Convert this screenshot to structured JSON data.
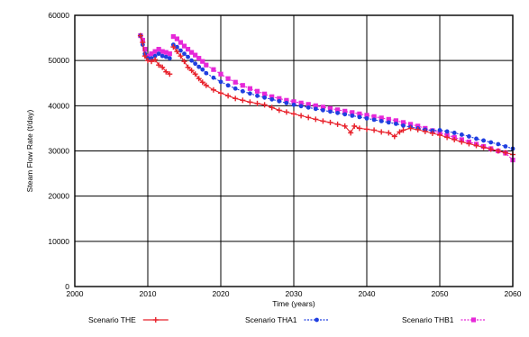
{
  "chart_data": {
    "type": "line",
    "title": "",
    "xlabel": "Time (years)",
    "ylabel": "Steam Flow Rate (t/day)",
    "xlim": [
      2000,
      2060
    ],
    "ylim": [
      0,
      60000
    ],
    "x_ticks": [
      2000,
      2010,
      2020,
      2030,
      2040,
      2050,
      2060
    ],
    "y_ticks": [
      0,
      10000,
      20000,
      30000,
      40000,
      50000,
      60000
    ],
    "grid": true,
    "legend_position": "bottom",
    "series": [
      {
        "name": "Scenario THE",
        "color": "#e8212b",
        "marker": "plus",
        "segments": [
          [
            [
              2009.0,
              55500
            ],
            [
              2009.3,
              54000
            ],
            [
              2009.6,
              51000
            ],
            [
              2010.0,
              50000
            ],
            [
              2010.5,
              49800
            ],
            [
              2011.0,
              50200
            ],
            [
              2011.5,
              49000
            ],
            [
              2012.0,
              48500
            ],
            [
              2012.5,
              47500
            ],
            [
              2013.0,
              47000
            ]
          ],
          [
            [
              2013.5,
              53000
            ],
            [
              2014.0,
              52000
            ],
            [
              2014.5,
              51000
            ],
            [
              2015.0,
              49800
            ],
            [
              2015.5,
              48500
            ],
            [
              2016.0,
              47800
            ],
            [
              2016.5,
              47000
            ],
            [
              2017.0,
              46000
            ],
            [
              2017.5,
              45200
            ],
            [
              2018.0,
              44500
            ],
            [
              2019.0,
              43500
            ],
            [
              2020.0,
              42800
            ],
            [
              2021.0,
              42200
            ],
            [
              2022.0,
              41600
            ],
            [
              2023.0,
              41200
            ],
            [
              2024.0,
              40800
            ],
            [
              2025.0,
              40500
            ],
            [
              2026.0,
              40200
            ],
            [
              2027.0,
              39600
            ],
            [
              2028.0,
              39000
            ],
            [
              2029.0,
              38600
            ],
            [
              2030.0,
              38200
            ],
            [
              2031.0,
              37800
            ],
            [
              2032.0,
              37400
            ],
            [
              2033.0,
              37000
            ],
            [
              2034.0,
              36600
            ],
            [
              2035.0,
              36300
            ],
            [
              2036.0,
              35900
            ],
            [
              2037.0,
              35500
            ],
            [
              2037.8,
              34000
            ],
            [
              2038.3,
              35500
            ],
            [
              2039.0,
              35000
            ],
            [
              2040.0,
              34800
            ],
            [
              2041.0,
              34600
            ],
            [
              2042.0,
              34200
            ],
            [
              2043.0,
              34000
            ],
            [
              2043.8,
              33200
            ],
            [
              2044.5,
              34200
            ],
            [
              2045.0,
              34600
            ],
            [
              2046.0,
              35000
            ],
            [
              2047.0,
              34700
            ],
            [
              2048.0,
              34300
            ],
            [
              2049.0,
              33900
            ],
            [
              2050.0,
              33500
            ],
            [
              2051.0,
              33000
            ],
            [
              2052.0,
              32500
            ],
            [
              2053.0,
              32000
            ],
            [
              2054.0,
              31600
            ],
            [
              2055.0,
              31200
            ],
            [
              2056.0,
              30800
            ],
            [
              2057.0,
              30400
            ],
            [
              2058.0,
              30000
            ],
            [
              2059.0,
              29600
            ],
            [
              2060.0,
              29200
            ]
          ]
        ]
      },
      {
        "name": "Scenario THA1",
        "color": "#1f3ee0",
        "marker": "circle",
        "segments": [
          [
            [
              2009.0,
              55500
            ],
            [
              2009.3,
              53500
            ],
            [
              2009.6,
              51500
            ],
            [
              2010.0,
              50500
            ],
            [
              2010.5,
              50500
            ],
            [
              2011.0,
              51000
            ],
            [
              2011.5,
              51500
            ],
            [
              2012.0,
              51000
            ],
            [
              2012.5,
              50800
            ],
            [
              2013.0,
              50500
            ]
          ],
          [
            [
              2013.5,
              53500
            ],
            [
              2014.0,
              53000
            ],
            [
              2014.5,
              52200
            ],
            [
              2015.0,
              51500
            ],
            [
              2015.5,
              50800
            ],
            [
              2016.0,
              50000
            ],
            [
              2016.5,
              49300
            ],
            [
              2017.0,
              48600
            ],
            [
              2017.5,
              48000
            ],
            [
              2018.0,
              47200
            ],
            [
              2019.0,
              46200
            ],
            [
              2020.0,
              45300
            ],
            [
              2021.0,
              44500
            ],
            [
              2022.0,
              43800
            ],
            [
              2023.0,
              43200
            ],
            [
              2024.0,
              42700
            ],
            [
              2025.0,
              42200
            ],
            [
              2026.0,
              41800
            ],
            [
              2027.0,
              41400
            ],
            [
              2028.0,
              41000
            ],
            [
              2029.0,
              40600
            ],
            [
              2030.0,
              40200
            ],
            [
              2031.0,
              39900
            ],
            [
              2032.0,
              39600
            ],
            [
              2033.0,
              39300
            ],
            [
              2034.0,
              39000
            ],
            [
              2035.0,
              38700
            ],
            [
              2036.0,
              38400
            ],
            [
              2037.0,
              38100
            ],
            [
              2038.0,
              37800
            ],
            [
              2039.0,
              37500
            ],
            [
              2040.0,
              37200
            ],
            [
              2041.0,
              36900
            ],
            [
              2042.0,
              36600
            ],
            [
              2043.0,
              36300
            ],
            [
              2044.0,
              36000
            ],
            [
              2045.0,
              35600
            ],
            [
              2046.0,
              35300
            ],
            [
              2047.0,
              35000
            ],
            [
              2048.0,
              34700
            ],
            [
              2049.0,
              34500
            ],
            [
              2050.0,
              34600
            ],
            [
              2051.0,
              34300
            ],
            [
              2052.0,
              34000
            ],
            [
              2053.0,
              33600
            ],
            [
              2054.0,
              33200
            ],
            [
              2055.0,
              32700
            ],
            [
              2056.0,
              32300
            ],
            [
              2057.0,
              31900
            ],
            [
              2058.0,
              31500
            ],
            [
              2059.0,
              31000
            ],
            [
              2060.0,
              30500
            ]
          ]
        ]
      },
      {
        "name": "Scenario THB1",
        "color": "#e628d8",
        "marker": "square",
        "segments": [
          [
            [
              2009.0,
              55500
            ],
            [
              2009.3,
              54500
            ],
            [
              2009.6,
              52500
            ],
            [
              2010.0,
              51000
            ],
            [
              2010.5,
              51500
            ],
            [
              2011.0,
              52000
            ],
            [
              2011.5,
              52500
            ],
            [
              2012.0,
              52000
            ],
            [
              2012.5,
              51800
            ],
            [
              2013.0,
              51500
            ]
          ],
          [
            [
              2013.5,
              55300
            ],
            [
              2014.0,
              54800
            ],
            [
              2014.5,
              54000
            ],
            [
              2015.0,
              53200
            ],
            [
              2015.5,
              52500
            ],
            [
              2016.0,
              51800
            ],
            [
              2016.5,
              51200
            ],
            [
              2017.0,
              50500
            ],
            [
              2017.5,
              49800
            ],
            [
              2018.0,
              49000
            ],
            [
              2019.0,
              48000
            ],
            [
              2020.0,
              47000
            ],
            [
              2021.0,
              46000
            ],
            [
              2022.0,
              45200
            ],
            [
              2023.0,
              44500
            ],
            [
              2024.0,
              43800
            ],
            [
              2025.0,
              43200
            ],
            [
              2026.0,
              42600
            ],
            [
              2027.0,
              42000
            ],
            [
              2028.0,
              41600
            ],
            [
              2029.0,
              41200
            ],
            [
              2030.0,
              40900
            ],
            [
              2031.0,
              40600
            ],
            [
              2032.0,
              40300
            ],
            [
              2033.0,
              40000
            ],
            [
              2034.0,
              39700
            ],
            [
              2035.0,
              39400
            ],
            [
              2036.0,
              39100
            ],
            [
              2037.0,
              38800
            ],
            [
              2038.0,
              38500
            ],
            [
              2039.0,
              38200
            ],
            [
              2040.0,
              37900
            ],
            [
              2041.0,
              37600
            ],
            [
              2042.0,
              37300
            ],
            [
              2043.0,
              37000
            ],
            [
              2044.0,
              36700
            ],
            [
              2045.0,
              36300
            ],
            [
              2046.0,
              35900
            ],
            [
              2047.0,
              35500
            ],
            [
              2048.0,
              35000
            ],
            [
              2049.0,
              34500
            ],
            [
              2050.0,
              34000
            ],
            [
              2051.0,
              33500
            ],
            [
              2052.0,
              33000
            ],
            [
              2053.0,
              32500
            ],
            [
              2054.0,
              32000
            ],
            [
              2055.0,
              31500
            ],
            [
              2056.0,
              31000
            ],
            [
              2057.0,
              30500
            ],
            [
              2058.0,
              30000
            ],
            [
              2059.0,
              29500
            ],
            [
              2060.0,
              28000
            ]
          ]
        ]
      }
    ]
  }
}
